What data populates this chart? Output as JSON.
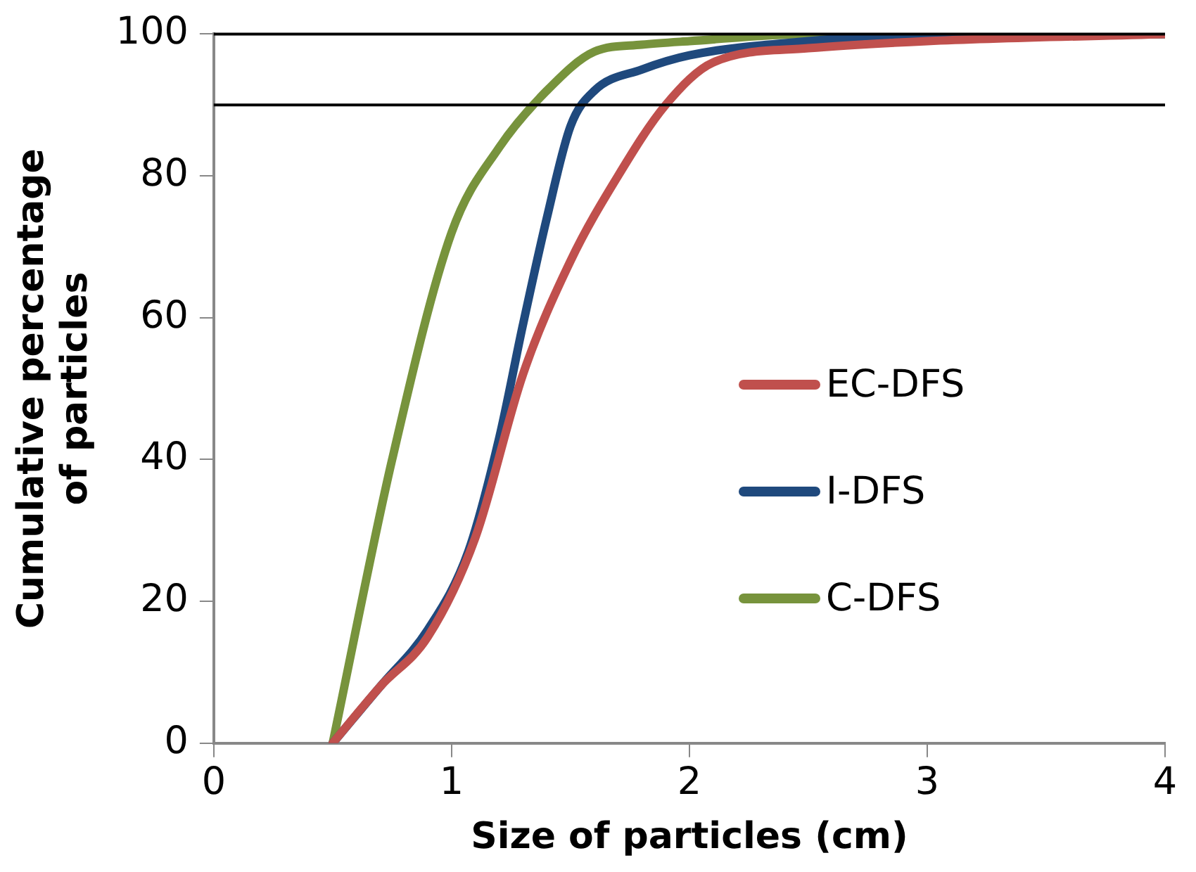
{
  "chart_data": {
    "type": "line",
    "xlabel": "Size of particles (cm)",
    "ylabel": "Cumulative percentage of particles",
    "xlim": [
      0,
      4
    ],
    "xticks": [
      0,
      1,
      2,
      3,
      4
    ],
    "ylim": [
      0,
      100
    ],
    "yticks": [
      0,
      20,
      40,
      60,
      80,
      100
    ],
    "grid": false,
    "legend": "right",
    "marker": "none",
    "line_style": "solid",
    "ref_lines": [
      {
        "axis": "y",
        "value": 90,
        "color": "#000000"
      },
      {
        "axis": "y",
        "value": 100,
        "color": "#000000"
      }
    ],
    "series": [
      {
        "name": "EC-DFS",
        "color": "#c0504d",
        "x": [
          0.5,
          0.7,
          0.9,
          1.1,
          1.3,
          1.5,
          1.7,
          1.9,
          2.1,
          2.5,
          3,
          4
        ],
        "values": [
          0,
          8,
          15,
          29,
          52,
          68,
          80,
          90,
          96,
          98,
          99,
          100
        ]
      },
      {
        "name": "I-DFS",
        "color": "#1f497d",
        "x": [
          0.5,
          0.7,
          0.9,
          1.07,
          1.2,
          1.3,
          1.4,
          1.5,
          1.6,
          1.8,
          2,
          2.5,
          3,
          4
        ],
        "values": [
          0,
          8,
          16,
          27,
          43,
          59,
          74,
          87,
          92,
          95,
          97,
          99,
          100,
          100
        ]
      },
      {
        "name": "C-DFS",
        "color": "#77933c",
        "x": [
          0.5,
          0.75,
          1,
          1.2,
          1.4,
          1.6,
          1.8,
          2,
          2.5,
          3,
          4
        ],
        "values": [
          0,
          40,
          72,
          84,
          92,
          97.5,
          98.5,
          99,
          100,
          100,
          100
        ]
      }
    ]
  }
}
